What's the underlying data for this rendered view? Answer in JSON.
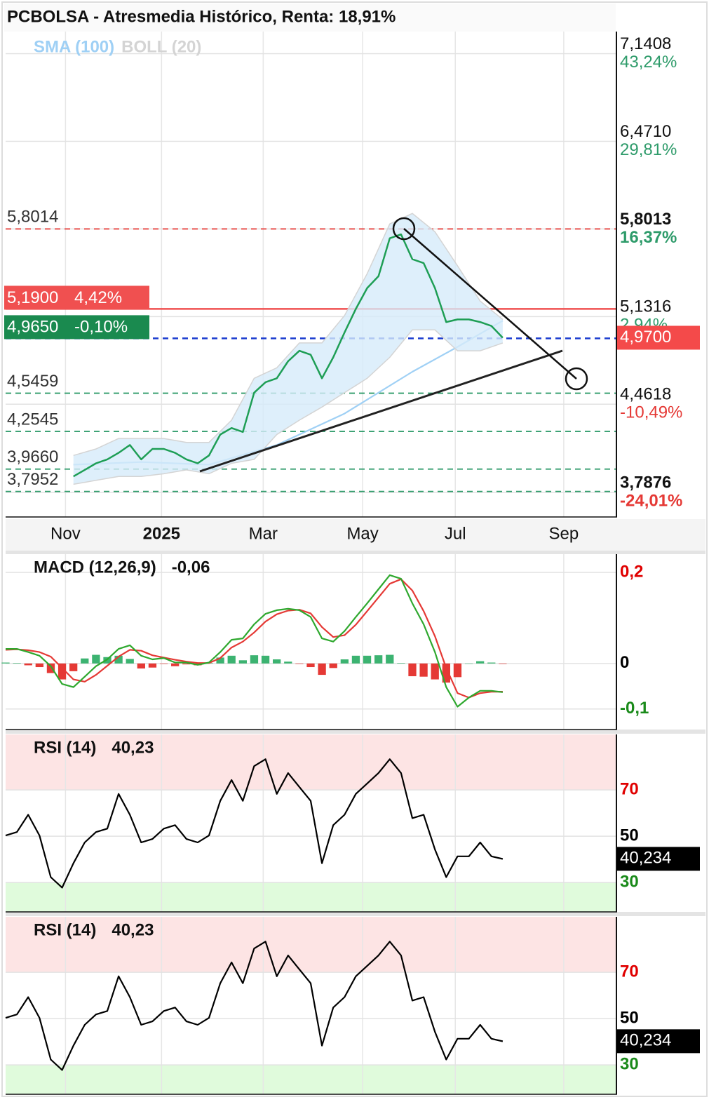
{
  "chart_data": [
    {
      "type": "line",
      "title": "PCBOLSA - Atresmedia Histórico, Renta: 18,91%",
      "xlim": [
        0,
        54
      ],
      "ylim": [
        3.6,
        7.31
      ],
      "xticks": [
        {
          "value": 5.3,
          "label": "Nov"
        },
        {
          "value": 13.8,
          "label": "2025",
          "bold": true
        },
        {
          "value": 22.8,
          "label": "Mar"
        },
        {
          "value": 31.6,
          "label": "May"
        },
        {
          "value": 39.8,
          "label": "Jul"
        },
        {
          "value": 49.4,
          "label": "Sep"
        }
      ],
      "yticks": [
        {
          "value": 7.1408,
          "label": "7,1408",
          "change": "43,24%"
        },
        {
          "value": 6.471,
          "label": "6,4710",
          "change": "29,81%"
        },
        {
          "value": 5.8013,
          "label": "5,8013",
          "change": "16,37%",
          "bold": true
        },
        {
          "value": 5.1316,
          "label": "5,1316",
          "change": "2,94%"
        },
        {
          "value": 4.4618,
          "label": "4,4618",
          "change": "-10,49%"
        },
        {
          "value": 3.7876,
          "label": "3,7876",
          "change": "-24,01%",
          "bold": true
        }
      ],
      "grid": true,
      "series": [
        {
          "name": "SMA (100)",
          "color": "#9fd0f5",
          "x": [
            6,
            12,
            18,
            24,
            30,
            36,
            40,
            44
          ],
          "values": [
            4.0,
            4.02,
            4.0,
            4.15,
            4.39,
            4.71,
            4.9,
            5.1
          ]
        },
        {
          "name": "BOLL (20)",
          "color": "#d4d4d4",
          "fill": "#d6ebfa",
          "type": "band",
          "x": [
            6,
            8,
            10,
            12,
            14,
            16,
            18,
            20,
            22,
            24,
            26,
            28,
            30,
            32,
            34,
            36,
            38,
            40,
            42,
            44
          ],
          "upper": [
            4.07,
            4.12,
            4.2,
            4.2,
            4.2,
            4.17,
            4.17,
            4.34,
            4.66,
            4.74,
            4.93,
            4.93,
            5.14,
            5.46,
            5.84,
            5.92,
            5.78,
            5.52,
            5.25,
            5.11
          ],
          "lower": [
            3.85,
            3.88,
            3.91,
            3.91,
            3.93,
            3.96,
            3.93,
            4.01,
            4.04,
            4.23,
            4.34,
            4.44,
            4.55,
            4.66,
            4.82,
            5.03,
            5.03,
            4.87,
            4.87,
            4.93
          ]
        },
        {
          "color": "#1e9e55",
          "x": [
            6,
            7,
            8,
            9,
            10,
            11,
            12,
            13,
            14,
            15,
            16,
            17,
            18,
            19,
            20,
            21,
            22,
            23,
            24,
            25,
            26,
            27,
            28,
            29,
            30,
            31,
            32,
            33,
            34,
            35,
            36,
            37,
            38,
            39,
            40,
            41,
            42,
            43,
            44
          ],
          "values": [
            3.91,
            3.96,
            4.01,
            4.04,
            4.09,
            4.15,
            4.04,
            4.12,
            4.12,
            4.09,
            4.04,
            4.01,
            4.07,
            4.23,
            4.28,
            4.25,
            4.55,
            4.63,
            4.66,
            4.79,
            4.87,
            4.84,
            4.66,
            4.82,
            5.01,
            5.19,
            5.35,
            5.44,
            5.73,
            5.76,
            5.57,
            5.54,
            5.35,
            5.09,
            5.11,
            5.11,
            5.09,
            5.06,
            4.97
          ]
        }
      ],
      "levels": [
        {
          "value": 5.8014,
          "label": "5,8014",
          "color": "#e53935",
          "style": "dashed"
        },
        {
          "value": 5.19,
          "label": "5,1900",
          "change": "4,42%",
          "color": "#f05050",
          "line_color": "#f05050",
          "style": "solid",
          "boxed": true
        },
        {
          "value": 4.965,
          "label": "4,9650",
          "change": "-0,10%",
          "color": "#1a8a4f",
          "line_color": "#1a3ccf",
          "style": "dashed",
          "boxed": true
        },
        {
          "value": 4.5459,
          "label": "4,5459",
          "color": "#2e9b6a",
          "style": "dashed"
        },
        {
          "value": 4.2545,
          "label": "4,2545",
          "color": "#2e9b6a",
          "style": "dashed"
        },
        {
          "value": 3.966,
          "label": "3,9660",
          "color": "#2e9b6a",
          "style": "dashed"
        },
        {
          "value": 3.7952,
          "label": "3,7952",
          "color": "#2e9b6a",
          "style": "dashed"
        }
      ],
      "last_value": {
        "value": 4.97,
        "label": "4,9700",
        "color": "#f44a4a"
      }
    },
    {
      "type": "line",
      "title": "MACD (12,26,9)",
      "current_value": -0.06,
      "current_value_label": "-0,06",
      "xlim": [
        0,
        54
      ],
      "ylim": [
        -0.145,
        0.24
      ],
      "yticks": [
        {
          "value": 0.2,
          "label": "0,2"
        },
        0,
        {
          "value": -0.1,
          "label": "-0,1"
        }
      ],
      "ytick_colors": [
        "#e00000",
        "#000000",
        "#1a8a1a"
      ],
      "grid": true,
      "series": [
        {
          "type": "bar",
          "colors": [
            "#3cb371",
            "#e53935"
          ],
          "x": [
            0,
            1,
            2,
            3,
            4,
            5,
            6,
            7,
            8,
            9,
            10,
            11,
            12,
            13,
            14,
            15,
            16,
            17,
            18,
            19,
            20,
            21,
            22,
            23,
            24,
            25,
            26,
            27,
            28,
            29,
            30,
            31,
            32,
            33,
            34,
            35,
            36,
            37,
            38,
            39,
            40,
            41,
            42,
            43,
            44
          ],
          "values": [
            0.002,
            0.001,
            -0.004,
            -0.008,
            -0.021,
            -0.035,
            -0.017,
            0.011,
            0.019,
            0.014,
            0.017,
            0.01,
            -0.011,
            -0.009,
            -0.001,
            -0.006,
            -0.002,
            -0.004,
            0.001,
            0.013,
            0.017,
            0.007,
            0.018,
            0.017,
            0.009,
            0.004,
            -0.001,
            -0.008,
            -0.025,
            -0.01,
            0.009,
            0.017,
            0.017,
            0.018,
            0.019,
            0.001,
            -0.028,
            -0.029,
            -0.035,
            -0.042,
            -0.03,
            0,
            0.005,
            0.002,
            -0.001
          ]
        },
        {
          "color": "#e53935",
          "x": [
            0,
            1,
            2,
            3,
            4,
            5,
            6,
            7,
            8,
            9,
            10,
            11,
            12,
            13,
            14,
            15,
            16,
            17,
            18,
            19,
            20,
            21,
            22,
            23,
            24,
            25,
            26,
            27,
            28,
            29,
            30,
            31,
            32,
            33,
            34,
            35,
            36,
            37,
            38,
            39,
            40,
            41,
            42,
            43,
            44
          ],
          "values": [
            0.03,
            0.031,
            0.029,
            0.025,
            0.015,
            -0.01,
            -0.035,
            -0.04,
            -0.025,
            -0.005,
            0.015,
            0.03,
            0.028,
            0.018,
            0.013,
            0.008,
            0.004,
            0.001,
            0.001,
            0.012,
            0.035,
            0.048,
            0.068,
            0.092,
            0.108,
            0.116,
            0.118,
            0.11,
            0.08,
            0.058,
            0.062,
            0.085,
            0.115,
            0.145,
            0.175,
            0.185,
            0.16,
            0.115,
            0.06,
            -0.01,
            -0.065,
            -0.075,
            -0.065,
            -0.062,
            -0.062
          ]
        },
        {
          "color": "#2ea82e",
          "x": [
            0,
            1,
            2,
            3,
            4,
            5,
            6,
            7,
            8,
            9,
            10,
            11,
            12,
            13,
            14,
            15,
            16,
            17,
            18,
            19,
            20,
            21,
            22,
            23,
            24,
            25,
            26,
            27,
            28,
            29,
            30,
            31,
            32,
            33,
            34,
            35,
            36,
            37,
            38,
            39,
            40,
            41,
            42,
            43,
            44
          ],
          "values": [
            0.032,
            0.032,
            0.025,
            0.017,
            -0.006,
            -0.045,
            -0.052,
            -0.029,
            -0.006,
            0.009,
            0.032,
            0.04,
            0.017,
            0.009,
            0.012,
            0.002,
            0.002,
            -0.003,
            0.002,
            0.025,
            0.052,
            0.055,
            0.086,
            0.109,
            0.117,
            0.12,
            0.117,
            0.102,
            0.055,
            0.048,
            0.071,
            0.102,
            0.132,
            0.163,
            0.194,
            0.186,
            0.132,
            0.086,
            0.025,
            -0.052,
            -0.095,
            -0.075,
            -0.06,
            -0.06,
            -0.063
          ]
        }
      ]
    },
    {
      "type": "line",
      "title": "RSI (14)",
      "current_value": 40.23,
      "current_value_label": "40,23",
      "xlim": [
        0,
        54
      ],
      "ylim": [
        17.3,
        94
      ],
      "yticks": [
        70,
        50,
        30
      ],
      "ytick_colors": [
        "#e00000",
        "#000000",
        "#1a8a1a"
      ],
      "grid": true,
      "zones": [
        {
          "from": 70,
          "color": "#fde4e4"
        },
        {
          "to": 30,
          "color": "#e0fbdc"
        }
      ],
      "last_value": {
        "value": 40.234,
        "label": "40,234",
        "color": "#000000"
      },
      "series": [
        {
          "color": "#000000",
          "x": [
            0,
            1,
            2,
            3,
            4,
            5,
            6,
            7,
            8,
            9,
            10,
            11,
            12,
            13,
            14,
            15,
            16,
            17,
            18,
            19,
            20,
            21,
            22,
            23,
            24,
            25,
            26,
            27,
            28,
            29,
            30,
            31,
            32,
            33,
            34,
            35,
            36,
            37,
            38,
            39,
            40,
            41,
            42,
            43,
            44
          ],
          "values": [
            50.3,
            51.8,
            59.3,
            50.3,
            32.3,
            27.8,
            38.3,
            47.3,
            51.8,
            53.3,
            68.3,
            59.3,
            47.3,
            48.8,
            53.3,
            54.8,
            48.8,
            47.3,
            50.3,
            65.3,
            74.3,
            65.3,
            80.3,
            83.3,
            68.3,
            77.3,
            71.3,
            65.3,
            38.3,
            54.8,
            59.3,
            68.3,
            72.8,
            77.3,
            83.3,
            77.3,
            57.8,
            59.3,
            44.3,
            32.3,
            41.3,
            41.3,
            47.3,
            41.3,
            40.2
          ]
        }
      ]
    },
    {
      "type": "line",
      "title": "RSI (14)",
      "current_value": 40.23,
      "current_value_label": "40,23",
      "xlim": [
        0,
        54
      ],
      "ylim": [
        17.3,
        94
      ],
      "yticks": [
        70,
        50,
        30
      ],
      "ytick_colors": [
        "#e00000",
        "#000000",
        "#1a8a1a"
      ],
      "grid": true,
      "zones": [
        {
          "from": 70,
          "color": "#fde4e4"
        },
        {
          "to": 30,
          "color": "#e0fbdc"
        }
      ],
      "last_value": {
        "value": 40.234,
        "label": "40,234",
        "color": "#000000"
      },
      "series": [
        {
          "color": "#000000",
          "x": [
            0,
            1,
            2,
            3,
            4,
            5,
            6,
            7,
            8,
            9,
            10,
            11,
            12,
            13,
            14,
            15,
            16,
            17,
            18,
            19,
            20,
            21,
            22,
            23,
            24,
            25,
            26,
            27,
            28,
            29,
            30,
            31,
            32,
            33,
            34,
            35,
            36,
            37,
            38,
            39,
            40,
            41,
            42,
            43,
            44
          ],
          "values": [
            50.3,
            51.8,
            59.3,
            50.3,
            32.3,
            27.8,
            38.3,
            47.3,
            51.8,
            53.3,
            68.3,
            59.3,
            47.3,
            48.8,
            53.3,
            54.8,
            48.8,
            47.3,
            50.3,
            65.3,
            74.3,
            65.3,
            80.3,
            83.3,
            68.3,
            77.3,
            71.3,
            65.3,
            38.3,
            54.8,
            59.3,
            68.3,
            72.8,
            77.3,
            83.3,
            77.3,
            57.8,
            59.3,
            44.3,
            32.3,
            41.3,
            41.3,
            47.3,
            41.3,
            40.2
          ]
        }
      ]
    }
  ]
}
